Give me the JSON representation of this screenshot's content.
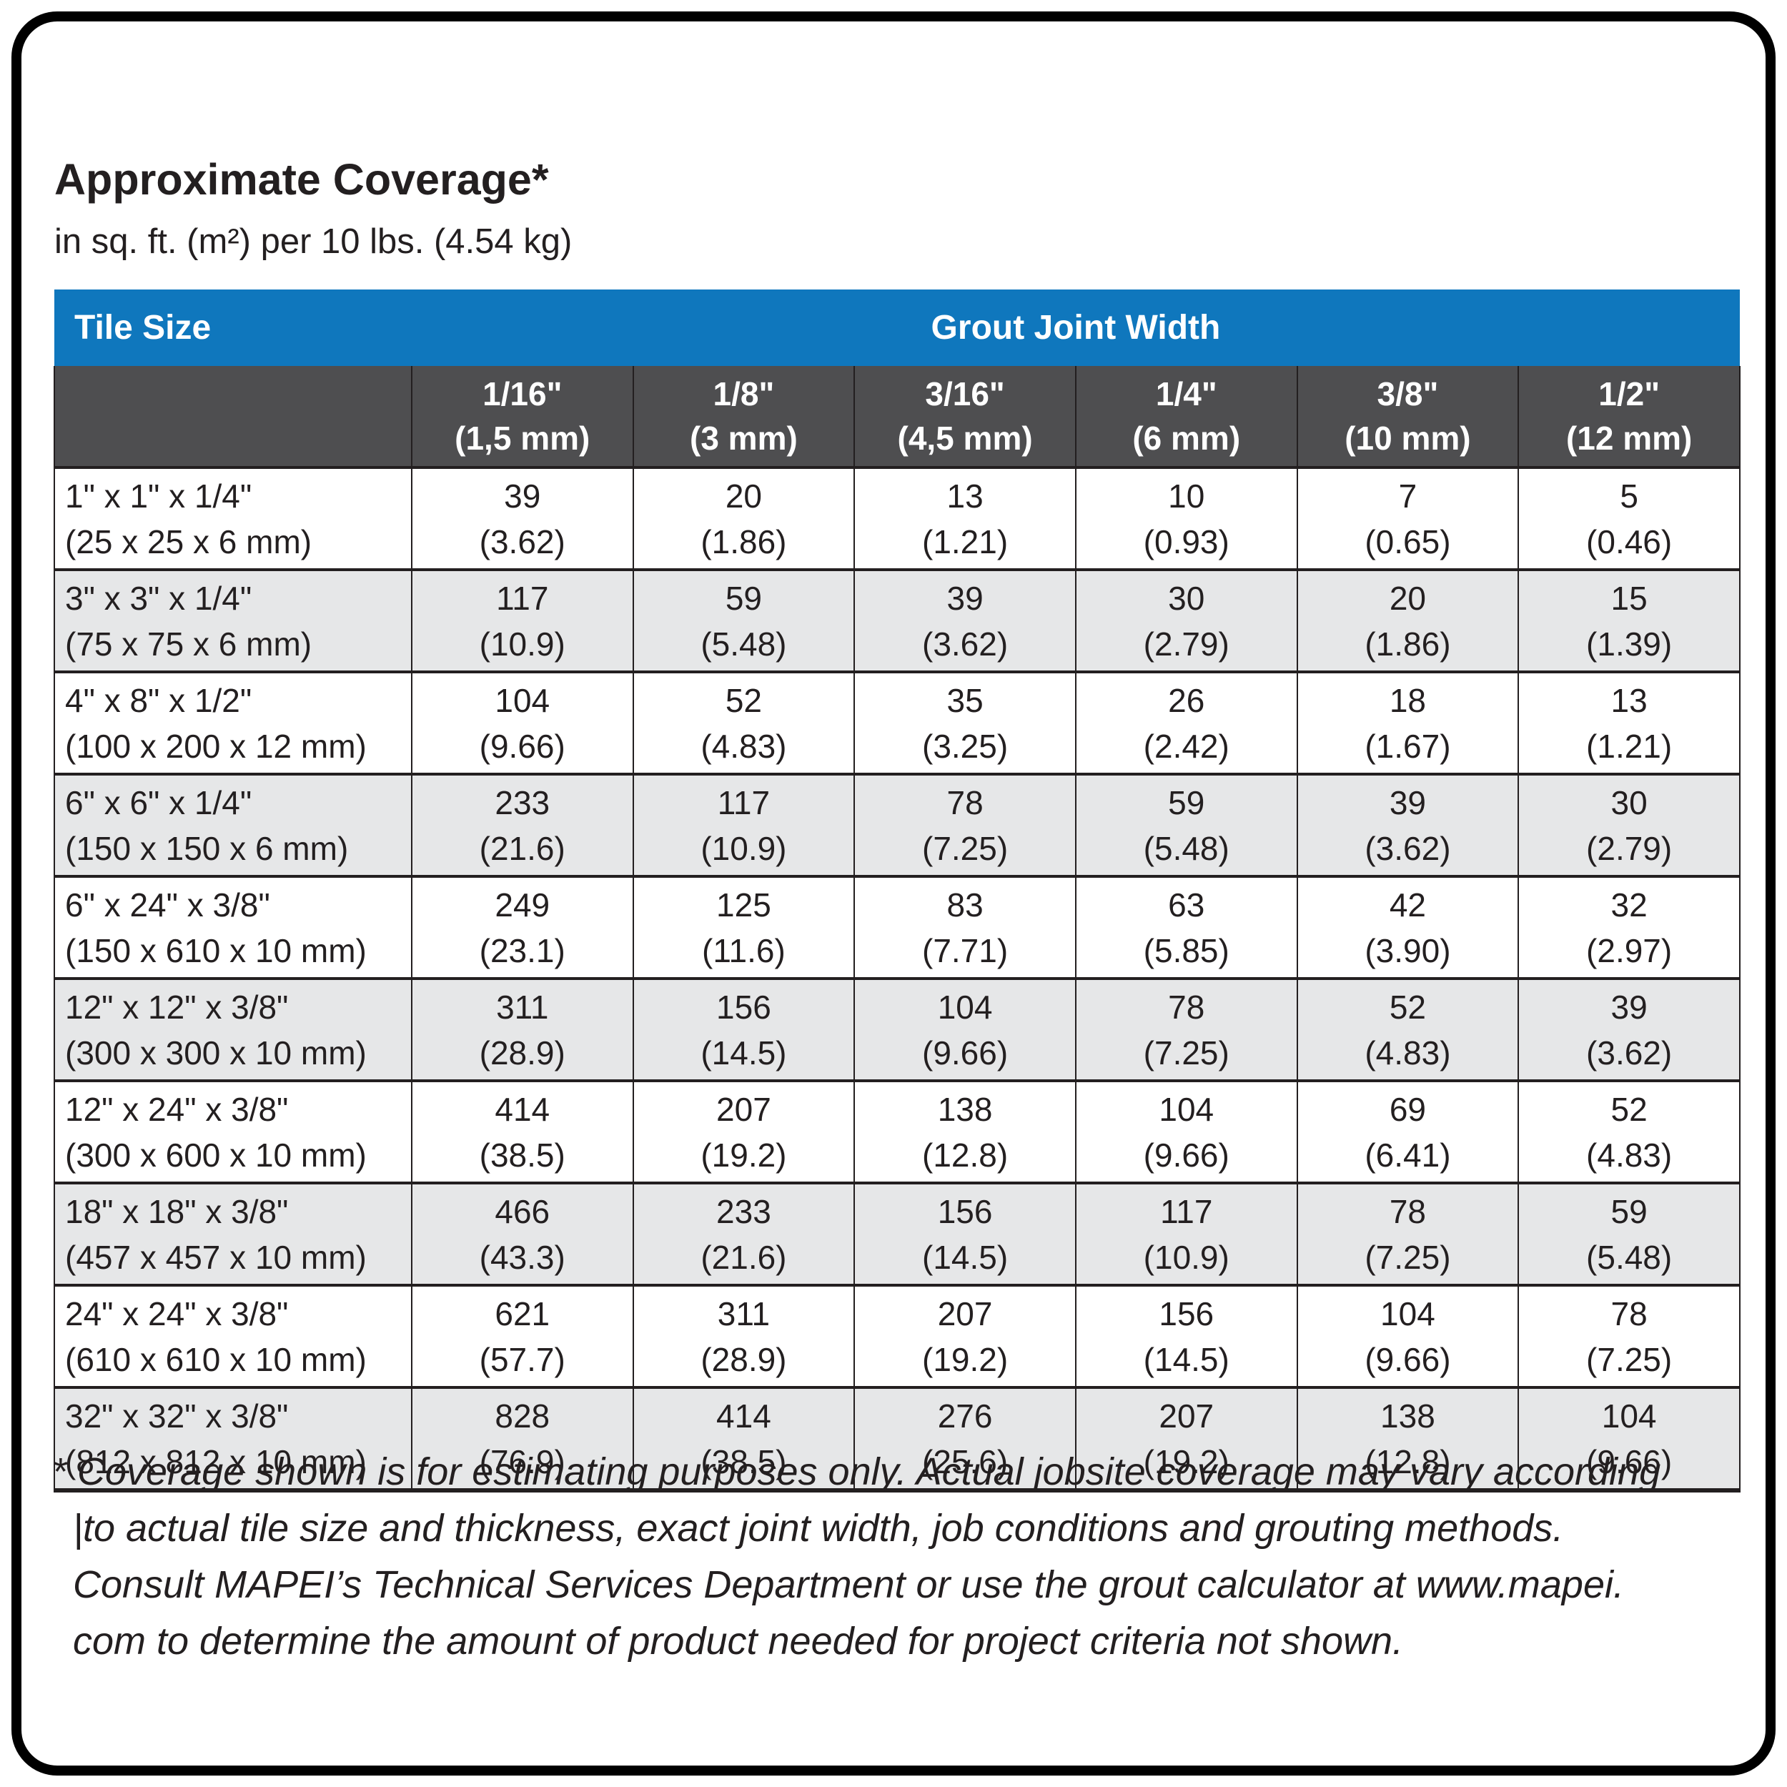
{
  "colors": {
    "header_blue": "#0f77bd",
    "header_dark_gray": "#4e4e50",
    "row_alt_gray": "#e6e7e8",
    "text": "#231f20",
    "frame_border": "#000000"
  },
  "chart_data": {
    "type": "table",
    "title": "Approximate Coverage*",
    "subtitle": "in sq. ft. (m²) per 10 lbs. (4.54 kg)",
    "corner_header": "Tile Size",
    "group_header": "Grout Joint Width",
    "columns": [
      "1/16\"\n(1,5 mm)",
      "1/8\"\n(3 mm)",
      "3/16\"\n(4,5 mm)",
      "1/4\"\n(6 mm)",
      "3/8\"\n(10 mm)",
      "1/2\"\n(12 mm)"
    ],
    "rows": [
      {
        "label": "1\" x 1\" x 1/4\"\n(25 x 25 x 6 mm)",
        "cells": [
          "39\n(3.62)",
          "20\n(1.86)",
          "13\n(1.21)",
          "10\n(0.93)",
          "7\n(0.65)",
          "5\n(0.46)"
        ]
      },
      {
        "label": "3\" x 3\" x 1/4\"\n(75 x 75 x 6 mm)",
        "cells": [
          "117\n(10.9)",
          "59\n(5.48)",
          "39\n(3.62)",
          "30\n(2.79)",
          "20\n(1.86)",
          "15\n(1.39)"
        ]
      },
      {
        "label": "4\" x 8\" x 1/2\"\n(100 x 200 x 12 mm)",
        "cells": [
          "104\n(9.66)",
          "52\n(4.83)",
          "35\n(3.25)",
          "26\n(2.42)",
          "18\n(1.67)",
          "13\n(1.21)"
        ]
      },
      {
        "label": "6\" x 6\" x 1/4\"\n(150 x 150 x 6 mm)",
        "cells": [
          "233\n(21.6)",
          "117\n(10.9)",
          "78\n(7.25)",
          "59\n(5.48)",
          "39\n(3.62)",
          "30\n(2.79)"
        ]
      },
      {
        "label": "6\" x 24\" x 3/8\"\n(150 x 610 x 10 mm)",
        "cells": [
          "249\n(23.1)",
          "125\n(11.6)",
          "83\n(7.71)",
          "63\n(5.85)",
          "42\n(3.90)",
          "32\n(2.97)"
        ]
      },
      {
        "label": "12\" x 12\" x 3/8\"\n(300 x 300 x 10 mm)",
        "cells": [
          "311\n(28.9)",
          "156\n(14.5)",
          "104\n(9.66)",
          "78\n(7.25)",
          "52\n(4.83)",
          "39\n(3.62)"
        ]
      },
      {
        "label": "12\" x 24\" x 3/8\"\n(300 x 600 x 10 mm)",
        "cells": [
          "414\n(38.5)",
          "207\n(19.2)",
          "138\n(12.8)",
          "104\n(9.66)",
          "69\n(6.41)",
          "52\n(4.83)"
        ]
      },
      {
        "label": "18\" x 18\" x 3/8\"\n(457 x 457 x 10 mm)",
        "cells": [
          "466\n(43.3)",
          "233\n(21.6)",
          "156\n(14.5)",
          "117\n(10.9)",
          "78\n(7.25)",
          "59\n(5.48)"
        ]
      },
      {
        "label": "24\" x 24\" x 3/8\"\n(610 x 610 x 10 mm)",
        "cells": [
          "621\n(57.7)",
          "311\n(28.9)",
          "207\n(19.2)",
          "156\n(14.5)",
          "104\n(9.66)",
          "78\n(7.25)"
        ]
      },
      {
        "label": "32\" x 32\" x 3/8\"\n(812 x 812 x 10 mm)",
        "cells": [
          "828\n(76.9)",
          "414\n(38.5)",
          "276\n(25.6)",
          "207\n(19.2)",
          "138\n(12.8)",
          "104\n(9.66)"
        ]
      }
    ],
    "footnote_lines": [
      "* Coverage shown is for estimating purposes only. Actual jobsite coverage may vary according",
      "|to actual tile size and thickness, exact joint width, job conditions and grouting methods.",
      "Consult MAPEI’s Technical Services Department or use the grout calculator at www.mapei.",
      "com to determine the amount of product needed for project criteria not shown."
    ]
  }
}
